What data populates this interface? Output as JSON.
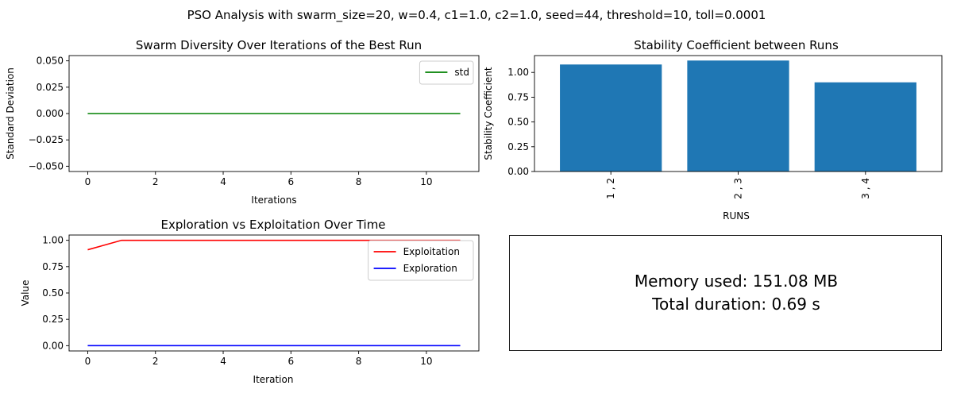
{
  "suptitle": "PSO Analysis with swarm_size=20, w=0.4, c1=1.0, c2=1.0, seed=44, threshold=10, toll=0.0001",
  "chart_data": [
    {
      "type": "line",
      "title": "Swarm Diversity Over Iterations of the Best Run",
      "xlabel": "Iterations",
      "ylabel": "Standard Deviation",
      "xlim": [
        -0.55,
        11.55
      ],
      "ylim": [
        -0.055,
        0.055
      ],
      "xticks": [
        0,
        2,
        4,
        6,
        8,
        10
      ],
      "xtick_labels": [
        "0",
        "2",
        "4",
        "6",
        "8",
        "10"
      ],
      "yticks": [
        -0.05,
        -0.025,
        0.0,
        0.025,
        0.05
      ],
      "ytick_labels": [
        "−0.050",
        "−0.025",
        "0.000",
        "0.025",
        "0.050"
      ],
      "legend": "top-right",
      "series": [
        {
          "name": "std",
          "color": "#008000",
          "x": [
            0,
            1,
            2,
            3,
            4,
            5,
            6,
            7,
            8,
            9,
            10,
            11
          ],
          "y": [
            0,
            0,
            0,
            0,
            0,
            0,
            0,
            0,
            0,
            0,
            0,
            0
          ]
        }
      ]
    },
    {
      "type": "bar",
      "title": "Stability Coefficient between Runs",
      "xlabel": "RUNS",
      "ylabel": "Stability Coefficient",
      "ylim": [
        0,
        1.17
      ],
      "yticks": [
        0.0,
        0.25,
        0.5,
        0.75,
        1.0
      ],
      "ytick_labels": [
        "0.00",
        "0.25",
        "0.50",
        "0.75",
        "1.00"
      ],
      "categories": [
        "1 , 2",
        "2 , 3",
        "3 , 4"
      ],
      "values": [
        1.08,
        1.12,
        0.9
      ],
      "color": "#1f77b4"
    },
    {
      "type": "line",
      "title": "Exploration vs Exploitation Over Time",
      "xlabel": "Iteration",
      "ylabel": "Value",
      "xlim": [
        -0.55,
        11.55
      ],
      "ylim": [
        -0.05,
        1.05
      ],
      "xticks": [
        0,
        2,
        4,
        6,
        8,
        10
      ],
      "xtick_labels": [
        "0",
        "2",
        "4",
        "6",
        "8",
        "10"
      ],
      "yticks": [
        0.0,
        0.25,
        0.5,
        0.75,
        1.0
      ],
      "ytick_labels": [
        "0.00",
        "0.25",
        "0.50",
        "0.75",
        "1.00"
      ],
      "legend": "top-right",
      "series": [
        {
          "name": "Exploitation",
          "color": "#ff0000",
          "x": [
            0,
            1,
            2,
            3,
            4,
            5,
            6,
            7,
            8,
            9,
            10,
            11
          ],
          "y": [
            0.91,
            1,
            1,
            1,
            1,
            1,
            1,
            1,
            1,
            1,
            1,
            1
          ]
        },
        {
          "name": "Exploration",
          "color": "#0000ff",
          "x": [
            0,
            1,
            2,
            3,
            4,
            5,
            6,
            7,
            8,
            9,
            10,
            11
          ],
          "y": [
            0,
            0,
            0,
            0,
            0,
            0,
            0,
            0,
            0,
            0,
            0,
            0
          ]
        }
      ]
    }
  ],
  "info": {
    "memory_text": "Memory used: 151.08 MB",
    "duration_text": "Total duration: 0.69 s"
  }
}
